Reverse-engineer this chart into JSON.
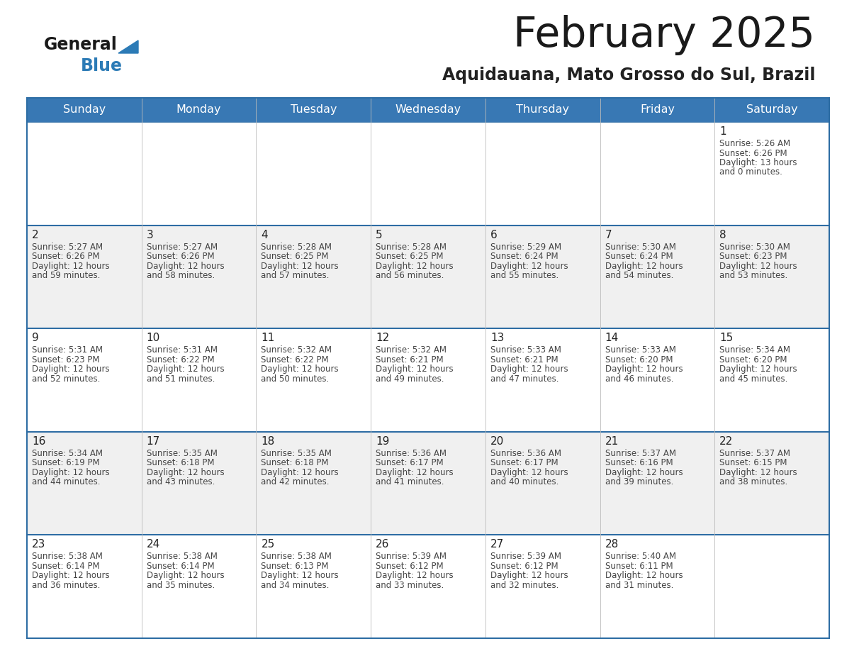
{
  "title": "February 2025",
  "subtitle": "Aquidauana, Mato Grosso do Sul, Brazil",
  "days_of_week": [
    "Sunday",
    "Monday",
    "Tuesday",
    "Wednesday",
    "Thursday",
    "Friday",
    "Saturday"
  ],
  "header_bg_color": "#3878b4",
  "header_text_color": "#ffffff",
  "cell_bg_color_even": "#ffffff",
  "cell_bg_color_odd": "#f0f0f0",
  "border_color": "#2e6da4",
  "day_number_color": "#222222",
  "info_text_color": "#444444",
  "title_color": "#1a1a1a",
  "subtitle_color": "#222222",
  "logo_general_color": "#1a1a1a",
  "logo_blue_color": "#2c7bb6",
  "calendar_data": [
    {
      "day": 1,
      "col": 6,
      "row": 0,
      "sunrise": "5:26 AM",
      "sunset": "6:26 PM",
      "daylight_hours": 13,
      "daylight_minutes": 0
    },
    {
      "day": 2,
      "col": 0,
      "row": 1,
      "sunrise": "5:27 AM",
      "sunset": "6:26 PM",
      "daylight_hours": 12,
      "daylight_minutes": 59
    },
    {
      "day": 3,
      "col": 1,
      "row": 1,
      "sunrise": "5:27 AM",
      "sunset": "6:26 PM",
      "daylight_hours": 12,
      "daylight_minutes": 58
    },
    {
      "day": 4,
      "col": 2,
      "row": 1,
      "sunrise": "5:28 AM",
      "sunset": "6:25 PM",
      "daylight_hours": 12,
      "daylight_minutes": 57
    },
    {
      "day": 5,
      "col": 3,
      "row": 1,
      "sunrise": "5:28 AM",
      "sunset": "6:25 PM",
      "daylight_hours": 12,
      "daylight_minutes": 56
    },
    {
      "day": 6,
      "col": 4,
      "row": 1,
      "sunrise": "5:29 AM",
      "sunset": "6:24 PM",
      "daylight_hours": 12,
      "daylight_minutes": 55
    },
    {
      "day": 7,
      "col": 5,
      "row": 1,
      "sunrise": "5:30 AM",
      "sunset": "6:24 PM",
      "daylight_hours": 12,
      "daylight_minutes": 54
    },
    {
      "day": 8,
      "col": 6,
      "row": 1,
      "sunrise": "5:30 AM",
      "sunset": "6:23 PM",
      "daylight_hours": 12,
      "daylight_minutes": 53
    },
    {
      "day": 9,
      "col": 0,
      "row": 2,
      "sunrise": "5:31 AM",
      "sunset": "6:23 PM",
      "daylight_hours": 12,
      "daylight_minutes": 52
    },
    {
      "day": 10,
      "col": 1,
      "row": 2,
      "sunrise": "5:31 AM",
      "sunset": "6:22 PM",
      "daylight_hours": 12,
      "daylight_minutes": 51
    },
    {
      "day": 11,
      "col": 2,
      "row": 2,
      "sunrise": "5:32 AM",
      "sunset": "6:22 PM",
      "daylight_hours": 12,
      "daylight_minutes": 50
    },
    {
      "day": 12,
      "col": 3,
      "row": 2,
      "sunrise": "5:32 AM",
      "sunset": "6:21 PM",
      "daylight_hours": 12,
      "daylight_minutes": 49
    },
    {
      "day": 13,
      "col": 4,
      "row": 2,
      "sunrise": "5:33 AM",
      "sunset": "6:21 PM",
      "daylight_hours": 12,
      "daylight_minutes": 47
    },
    {
      "day": 14,
      "col": 5,
      "row": 2,
      "sunrise": "5:33 AM",
      "sunset": "6:20 PM",
      "daylight_hours": 12,
      "daylight_minutes": 46
    },
    {
      "day": 15,
      "col": 6,
      "row": 2,
      "sunrise": "5:34 AM",
      "sunset": "6:20 PM",
      "daylight_hours": 12,
      "daylight_minutes": 45
    },
    {
      "day": 16,
      "col": 0,
      "row": 3,
      "sunrise": "5:34 AM",
      "sunset": "6:19 PM",
      "daylight_hours": 12,
      "daylight_minutes": 44
    },
    {
      "day": 17,
      "col": 1,
      "row": 3,
      "sunrise": "5:35 AM",
      "sunset": "6:18 PM",
      "daylight_hours": 12,
      "daylight_minutes": 43
    },
    {
      "day": 18,
      "col": 2,
      "row": 3,
      "sunrise": "5:35 AM",
      "sunset": "6:18 PM",
      "daylight_hours": 12,
      "daylight_minutes": 42
    },
    {
      "day": 19,
      "col": 3,
      "row": 3,
      "sunrise": "5:36 AM",
      "sunset": "6:17 PM",
      "daylight_hours": 12,
      "daylight_minutes": 41
    },
    {
      "day": 20,
      "col": 4,
      "row": 3,
      "sunrise": "5:36 AM",
      "sunset": "6:17 PM",
      "daylight_hours": 12,
      "daylight_minutes": 40
    },
    {
      "day": 21,
      "col": 5,
      "row": 3,
      "sunrise": "5:37 AM",
      "sunset": "6:16 PM",
      "daylight_hours": 12,
      "daylight_minutes": 39
    },
    {
      "day": 22,
      "col": 6,
      "row": 3,
      "sunrise": "5:37 AM",
      "sunset": "6:15 PM",
      "daylight_hours": 12,
      "daylight_minutes": 38
    },
    {
      "day": 23,
      "col": 0,
      "row": 4,
      "sunrise": "5:38 AM",
      "sunset": "6:14 PM",
      "daylight_hours": 12,
      "daylight_minutes": 36
    },
    {
      "day": 24,
      "col": 1,
      "row": 4,
      "sunrise": "5:38 AM",
      "sunset": "6:14 PM",
      "daylight_hours": 12,
      "daylight_minutes": 35
    },
    {
      "day": 25,
      "col": 2,
      "row": 4,
      "sunrise": "5:38 AM",
      "sunset": "6:13 PM",
      "daylight_hours": 12,
      "daylight_minutes": 34
    },
    {
      "day": 26,
      "col": 3,
      "row": 4,
      "sunrise": "5:39 AM",
      "sunset": "6:12 PM",
      "daylight_hours": 12,
      "daylight_minutes": 33
    },
    {
      "day": 27,
      "col": 4,
      "row": 4,
      "sunrise": "5:39 AM",
      "sunset": "6:12 PM",
      "daylight_hours": 12,
      "daylight_minutes": 32
    },
    {
      "day": 28,
      "col": 5,
      "row": 4,
      "sunrise": "5:40 AM",
      "sunset": "6:11 PM",
      "daylight_hours": 12,
      "daylight_minutes": 31
    }
  ]
}
